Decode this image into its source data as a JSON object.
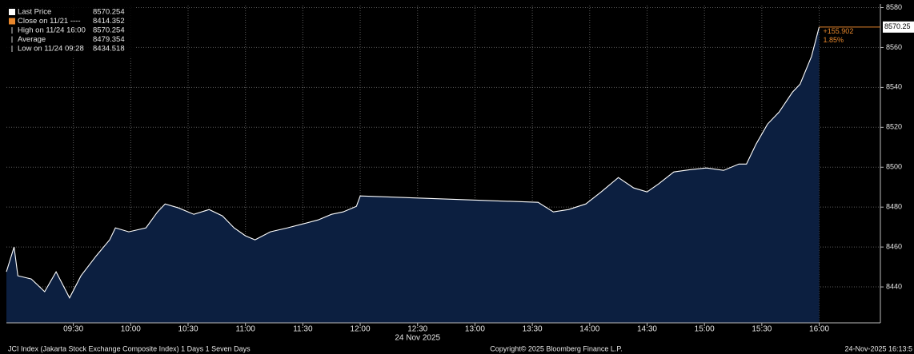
{
  "chart_data": {
    "type": "area",
    "legend": [
      {
        "label": "Last Price",
        "value": "8570.254"
      },
      {
        "label": "Close on 11/21 ----",
        "value": "8414.352"
      },
      {
        "label": "High on 11/24 16:00",
        "value": "8570.254"
      },
      {
        "label": "Average",
        "value": "8479.354"
      },
      {
        "label": "Low on 11/24 09:28",
        "value": "8434.518"
      }
    ],
    "x": [
      "08:55",
      "08:59",
      "09:01",
      "09:08",
      "09:15",
      "09:21",
      "09:28",
      "09:34",
      "09:42",
      "09:49",
      "09:52",
      "09:59",
      "10:08",
      "10:14",
      "10:18",
      "10:25",
      "10:33",
      "10:41",
      "10:48",
      "10:54",
      "11:00",
      "11:05",
      "11:13",
      "11:22",
      "11:30",
      "11:38",
      "11:45",
      "11:51",
      "11:58",
      "12:00",
      "13:33",
      "13:41",
      "13:49",
      "13:58",
      "14:06",
      "14:15",
      "14:23",
      "14:30",
      "14:36",
      "14:44",
      "14:53",
      "15:01",
      "15:10",
      "15:18",
      "15:22",
      "15:27",
      "15:33",
      "15:39",
      "15:46",
      "15:50",
      "15:56",
      "16:00"
    ],
    "values": [
      8447.6,
      8460,
      8445.6,
      8444,
      8437.6,
      8447.6,
      8434.5,
      8445.6,
      8455.6,
      8463.6,
      8469.6,
      8467.6,
      8469.6,
      8477.6,
      8481.6,
      8479.6,
      8476.4,
      8478.8,
      8475.6,
      8469.6,
      8465.6,
      8463.6,
      8467.6,
      8469.6,
      8471.6,
      8473.6,
      8476.4,
      8477.6,
      8480.4,
      8485.6,
      8482.4,
      8477.6,
      8478.8,
      8481.6,
      8487.6,
      8494.8,
      8489.6,
      8487.6,
      8491.6,
      8497.6,
      8498.8,
      8499.6,
      8498.4,
      8501.6,
      8501.6,
      8511.6,
      8521.6,
      8527.6,
      8537.6,
      8541.6,
      8555.6,
      8570.254
    ],
    "color": "#ffffff",
    "fill": "#0c1f40",
    "xlim": [
      "08:55",
      "16:32"
    ],
    "xticks": [
      "09:30",
      "10:00",
      "10:30",
      "11:00",
      "11:30",
      "12:00",
      "12:30",
      "13:00",
      "13:30",
      "14:00",
      "14:30",
      "15:00",
      "15:30",
      "16:00"
    ],
    "date_label": "24 Nov 2025",
    "ylim": [
      8422,
      8581
    ],
    "yticks": [
      8440,
      8460,
      8480,
      8500,
      8520,
      8540,
      8560,
      8580
    ],
    "grid": true,
    "last_label": "8570.25",
    "change": "+155.902",
    "change_pct": "1.85%",
    "footer": {
      "left": "JCI Index (Jakarta Stock Exchange Composite Index) 1 Days 1 Seven Days",
      "center": "Copyright© 2025 Bloomberg Finance L.P.",
      "right": "24-Nov-2025 16:13:5"
    }
  }
}
